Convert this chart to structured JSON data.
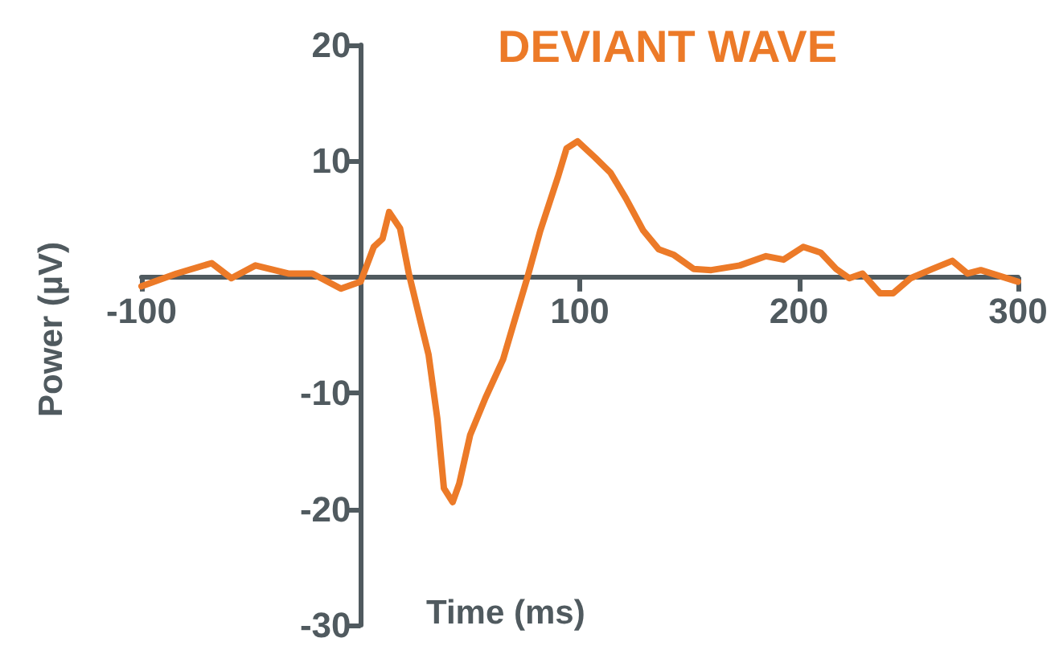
{
  "chart_data": {
    "type": "line",
    "title": "DEVIANT WAVE",
    "xlabel": "Time (ms)",
    "ylabel": "Power (µV)",
    "xlim": [
      -100,
      300
    ],
    "xticks": [
      -100,
      100,
      200,
      300
    ],
    "ylim": [
      -30,
      20
    ],
    "yticks": [
      -30,
      -20,
      -10,
      10,
      20
    ],
    "grid": false,
    "marker": "none",
    "line_style": "solid",
    "series": [
      {
        "color": "#ec7a28",
        "x": [
          -100,
          -84,
          -68,
          -59,
          -48,
          -33,
          -22,
          -9,
          0,
          6,
          10,
          13,
          18,
          22,
          27,
          31,
          35,
          38,
          42,
          45,
          50,
          57,
          65,
          70,
          76,
          82,
          90,
          94,
          99,
          107,
          114,
          121,
          129,
          136,
          143,
          152,
          160,
          173,
          185,
          193,
          202,
          210,
          217,
          223,
          229,
          237,
          243,
          251,
          261,
          270,
          277,
          283,
          300
        ],
        "values": [
          -0.8,
          0.3,
          1.2,
          -0.1,
          1.0,
          0.3,
          0.3,
          -1.0,
          -0.4,
          2.6,
          3.3,
          5.6,
          4.2,
          0.3,
          -3.6,
          -6.7,
          -12.2,
          -18.2,
          -19.4,
          -17.8,
          -13.6,
          -10.4,
          -7.1,
          -3.9,
          -0.1,
          4.0,
          8.6,
          11.1,
          11.7,
          10.3,
          9.0,
          6.8,
          4.0,
          2.4,
          1.9,
          0.7,
          0.6,
          1.0,
          1.8,
          1.5,
          2.6,
          2.1,
          0.7,
          -0.1,
          0.3,
          -1.4,
          -1.4,
          -0.1,
          0.7,
          1.4,
          0.3,
          0.6,
          -0.4
        ]
      }
    ]
  }
}
